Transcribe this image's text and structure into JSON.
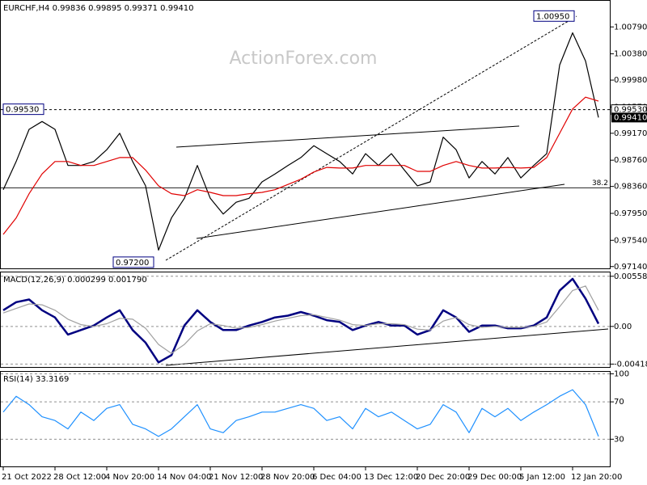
{
  "chart_data": [
    {
      "type": "line",
      "title": "EURCHF,H4 0.99836 0.99895 0.99371 0.99410",
      "watermark": "ActionForex.com",
      "ylim": [
        0.971,
        1.012
      ],
      "yticks": [
        {
          "value": 1.0079,
          "label": "1.00790"
        },
        {
          "value": 1.0038,
          "label": "1.00380"
        },
        {
          "value": 0.9998,
          "label": "0.99980"
        },
        {
          "value": 0.9957,
          "label": "0.99570"
        },
        {
          "value": 0.9917,
          "label": "0.99170"
        },
        {
          "value": 0.9876,
          "label": "0.98760"
        },
        {
          "value": 0.9836,
          "label": "0.98360"
        },
        {
          "value": 0.9795,
          "label": "0.97950"
        },
        {
          "value": 0.9754,
          "label": "0.97540"
        },
        {
          "value": 0.9714,
          "label": "0.97140"
        }
      ],
      "grid": false,
      "series": [
        {
          "color": "#000000",
          "values": [
            0.9831,
            0.9874,
            0.9923,
            0.9935,
            0.9923,
            0.9868,
            0.9868,
            0.9874,
            0.9892,
            0.9917,
            0.9874,
            0.9837,
            0.9739,
            0.9788,
            0.9818,
            0.9868,
            0.9818,
            0.9794,
            0.9812,
            0.9818,
            0.9843,
            0.9855,
            0.9868,
            0.988,
            0.9898,
            0.9886,
            0.9874,
            0.9855,
            0.9886,
            0.9868,
            0.9886,
            0.9861,
            0.9837,
            0.9843,
            0.9911,
            0.9892,
            0.9849,
            0.9874,
            0.9855,
            0.988,
            0.9849,
            0.9868,
            0.9886,
            1.0021,
            1.007,
            1.0027,
            0.9941
          ]
        },
        {
          "color": "#e00000",
          "values": [
            0.9763,
            0.9788,
            0.9825,
            0.9855,
            0.9874,
            0.9874,
            0.9868,
            0.9868,
            0.9874,
            0.988,
            0.988,
            0.9861,
            0.9837,
            0.9825,
            0.9822,
            0.9831,
            0.9827,
            0.9822,
            0.9822,
            0.9825,
            0.9827,
            0.9831,
            0.9839,
            0.9847,
            0.9858,
            0.9865,
            0.9864,
            0.9864,
            0.9868,
            0.9868,
            0.9868,
            0.9868,
            0.9859,
            0.9859,
            0.9868,
            0.9874,
            0.9868,
            0.9864,
            0.9864,
            0.9865,
            0.9864,
            0.9865,
            0.988,
            0.9917,
            0.9954,
            0.9972,
            0.9966
          ]
        }
      ],
      "annotations": [
        {
          "value": 1.0095,
          "label": "1.00950"
        },
        {
          "value": 0.9953,
          "label": "0.99530"
        },
        {
          "value": 0.972,
          "label": "0.97200"
        }
      ],
      "fib_level": {
        "percent": 38.2,
        "price": 0.9834
      },
      "last_price": {
        "value": 0.9941,
        "label": "0.99410"
      }
    },
    {
      "type": "line",
      "title": "MACD(12,26,9) 0.000299 0.001790",
      "ylim": [
        -0.0046,
        0.0061
      ],
      "yticks": [
        0.005582,
        {
          "value": 0,
          "label": "0.00"
        },
        -0.004188
      ],
      "grid": true,
      "series": [
        {
          "color": "#000080",
          "values": [
            0.0018,
            0.0027,
            0.003,
            0.0018,
            0.001,
            -0.0009,
            -0.0004,
            0.0001,
            0.001,
            0.0018,
            -0.0004,
            -0.0018,
            -0.004,
            -0.0032,
            0.0001,
            0.0018,
            0.0005,
            -0.0004,
            -0.0004,
            0.0001,
            0.0005,
            0.001,
            0.0012,
            0.0016,
            0.0012,
            0.0007,
            0.0005,
            -0.0004,
            0.0001,
            0.0005,
            0.0001,
            0.0001,
            -0.0009,
            -0.0004,
            0.0018,
            0.001,
            -0.0006,
            0.0001,
            0.0001,
            -0.0002,
            -0.0002,
            0.0001,
            0.001,
            0.004,
            0.0053,
            0.0031,
            0.0003
          ]
        },
        {
          "color": "#a0a0a0",
          "values": [
            0.0015,
            0.002,
            0.0025,
            0.0024,
            0.0018,
            0.0008,
            0.0002,
            0.0,
            0.0003,
            0.0009,
            0.0008,
            -0.0002,
            -0.002,
            -0.003,
            -0.002,
            -0.0005,
            0.0003,
            0.0001,
            -0.0002,
            -0.0001,
            0.0002,
            0.0006,
            0.0009,
            0.0012,
            0.0013,
            0.001,
            0.0007,
            0.0002,
            0.0001,
            0.0003,
            0.0003,
            0.0002,
            -0.0003,
            -0.0004,
            0.0006,
            0.001,
            0.0002,
            -0.0001,
            0.0,
            -0.0001,
            -0.0001,
            0.0,
            0.0005,
            0.0022,
            0.004,
            0.0045,
            0.0018
          ]
        }
      ]
    },
    {
      "type": "line",
      "title": "RSI(14) 33.3169",
      "ylim": [
        0,
        103
      ],
      "yticks": [
        100,
        70,
        30
      ],
      "grid": true,
      "categories": [
        "21 Oct 2022",
        null,
        null,
        null,
        "28 Oct 12:00",
        null,
        null,
        null,
        "4 Nov 20:00",
        null,
        null,
        null,
        "14 Nov 04:00",
        null,
        null,
        null,
        "21 Nov 12:00",
        null,
        null,
        null,
        "28 Nov 20:00",
        null,
        null,
        null,
        "6 Dec 04:00",
        null,
        null,
        null,
        "13 Dec 12:00",
        null,
        null,
        null,
        "20 Dec 20:00",
        null,
        null,
        null,
        "29 Dec 00:00",
        null,
        null,
        null,
        "5 Jan 12:00",
        null,
        null,
        null,
        "12 Jan 20:00",
        null,
        null
      ],
      "series": [
        {
          "color": "#1e90ff",
          "values": [
            59,
            76,
            67,
            54,
            50,
            41,
            59,
            50,
            63,
            67,
            46,
            41,
            33,
            41,
            54,
            67,
            41,
            37,
            50,
            54,
            59,
            59,
            63,
            67,
            63,
            50,
            54,
            41,
            63,
            54,
            59,
            50,
            41,
            46,
            67,
            59,
            37,
            63,
            54,
            63,
            50,
            59,
            67,
            76,
            83,
            67,
            33
          ]
        }
      ]
    }
  ]
}
